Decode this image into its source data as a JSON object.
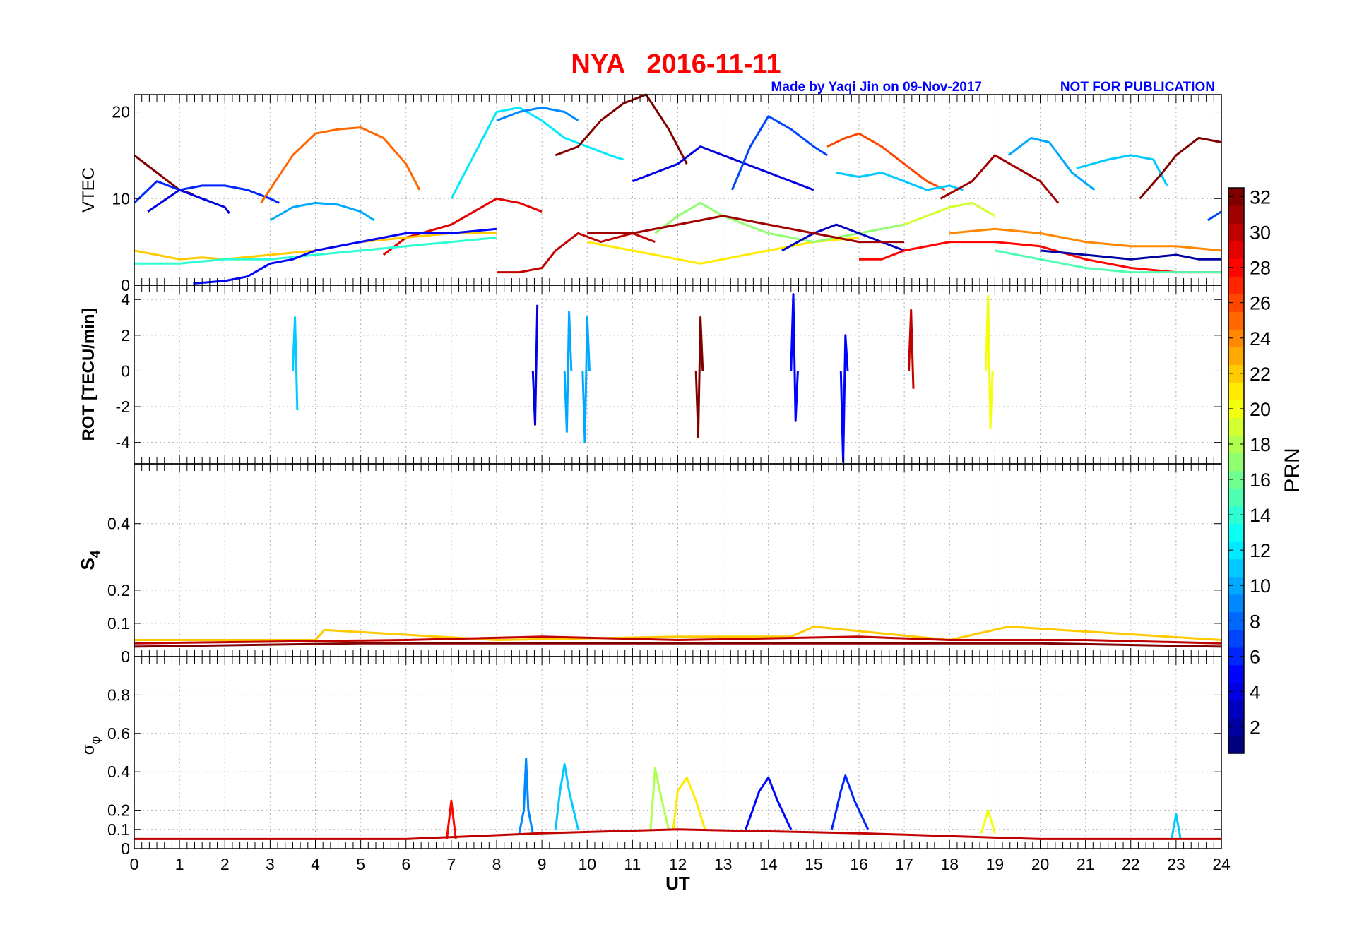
{
  "figure": {
    "title": "NYA   2016-11-11",
    "credit": "Made by Yaqi Jin on 09-Nov-2017",
    "notice": "NOT FOR PUBLICATION",
    "title_color": "#ff0000",
    "credit_color": "#0000ff"
  },
  "colorbar": {
    "label": "PRN",
    "ticks": [
      "2",
      "4",
      "6",
      "8",
      "10",
      "12",
      "14",
      "16",
      "18",
      "20",
      "22",
      "24",
      "26",
      "28",
      "30",
      "32"
    ],
    "range": [
      1,
      32
    ],
    "colormap": "jet"
  },
  "chart_data": [
    {
      "type": "line",
      "panel": "vtec",
      "ylabel": "VTEC",
      "xlim": [
        0,
        24
      ],
      "ylim": [
        0,
        22
      ],
      "yticks": [
        "0",
        "10",
        "20"
      ],
      "grid": true,
      "series": [
        {
          "prn": 32,
          "x": [
            0,
            0.5,
            1,
            1.3
          ],
          "y": [
            15,
            13,
            11,
            10.5
          ]
        },
        {
          "prn": 6,
          "x": [
            0,
            0.5,
            1,
            1.5,
            2,
            2.5,
            3,
            3.2
          ],
          "y": [
            9.5,
            12,
            11,
            11.5,
            11.5,
            11,
            10,
            9.5
          ]
        },
        {
          "prn": 4,
          "x": [
            0.3,
            1,
            1.5,
            2,
            2.1
          ],
          "y": [
            8.5,
            11,
            10,
            9,
            8.3
          ]
        },
        {
          "prn": 25,
          "x": [
            2.8,
            3.5,
            4,
            4.5,
            5,
            5.5,
            6,
            6.3
          ],
          "y": [
            9.5,
            15,
            17.5,
            18,
            18.2,
            17,
            14,
            11
          ]
        },
        {
          "prn": 10,
          "x": [
            3,
            3.5,
            4,
            4.5,
            5,
            5.3
          ],
          "y": [
            7.5,
            9,
            9.5,
            9.3,
            8.5,
            7.5
          ]
        },
        {
          "prn": 12,
          "x": [
            7,
            7.5,
            8,
            8.5,
            9,
            9.5,
            10,
            10.5,
            10.8
          ],
          "y": [
            10,
            15,
            20,
            20.5,
            19,
            17,
            16,
            15,
            14.5
          ]
        },
        {
          "prn": 9,
          "x": [
            8,
            8.5,
            9,
            9.5,
            9.8
          ],
          "y": [
            19,
            20,
            20.5,
            20,
            19
          ]
        },
        {
          "prn": 32,
          "x": [
            9.3,
            9.8,
            10.3,
            10.8,
            11.3,
            11.8,
            12.2
          ],
          "y": [
            15,
            16,
            19,
            21,
            22,
            18,
            14
          ]
        },
        {
          "prn": 4,
          "x": [
            11,
            11.5,
            12,
            12.5,
            13,
            13.5,
            14,
            14.5,
            15
          ],
          "y": [
            12,
            13,
            14,
            16,
            15,
            14,
            13,
            12,
            11
          ]
        },
        {
          "prn": 7,
          "x": [
            13.2,
            13.6,
            14,
            14.5,
            15,
            15.3
          ],
          "y": [
            11,
            16,
            19.5,
            18,
            16,
            15
          ]
        },
        {
          "prn": 26,
          "x": [
            15.3,
            15.7,
            16,
            16.5,
            17,
            17.5,
            17.9
          ],
          "y": [
            16,
            17,
            17.5,
            16,
            14,
            12,
            11
          ]
        },
        {
          "prn": 11,
          "x": [
            15.5,
            16,
            16.5,
            17,
            17.5,
            18,
            18.3
          ],
          "y": [
            13,
            12.5,
            13,
            12,
            11,
            11.5,
            11
          ]
        },
        {
          "prn": 10,
          "x": [
            19.3,
            19.8,
            20.2,
            20.7,
            21.2
          ],
          "y": [
            15,
            17,
            16.5,
            13,
            11
          ]
        },
        {
          "prn": 11,
          "x": [
            20.8,
            21.5,
            22,
            22.5,
            22.8
          ],
          "y": [
            13.5,
            14.5,
            15,
            14.5,
            11.5
          ]
        },
        {
          "prn": 31,
          "x": [
            17.8,
            18.5,
            19,
            19.5,
            20,
            20.4
          ],
          "y": [
            10,
            12,
            15,
            13.5,
            12,
            9.5
          ]
        },
        {
          "prn": 32,
          "x": [
            22.2,
            22.7,
            23,
            23.5,
            24
          ],
          "y": [
            10,
            13,
            15,
            17,
            16.5
          ]
        },
        {
          "prn": 29,
          "x": [
            5.5,
            6,
            7,
            8,
            8.5,
            9
          ],
          "y": [
            3.5,
            5.5,
            7,
            10,
            9.5,
            8.5
          ]
        },
        {
          "prn": 22,
          "x": [
            0,
            0.5,
            1,
            1.5,
            2,
            3,
            4,
            5,
            6,
            7,
            8
          ],
          "y": [
            4,
            3.5,
            3,
            3.2,
            3,
            3.5,
            4,
            5,
            5.5,
            6,
            6
          ]
        },
        {
          "prn": 14,
          "x": [
            0,
            1,
            2,
            3,
            4,
            5,
            6,
            7,
            8
          ],
          "y": [
            2.5,
            2.5,
            3,
            3,
            3.5,
            4,
            4.5,
            5,
            5.5
          ]
        },
        {
          "prn": 5,
          "x": [
            1.3,
            2,
            2.5,
            3,
            3.5,
            4,
            5,
            6,
            7,
            8
          ],
          "y": [
            0.2,
            0.5,
            1,
            2.5,
            3,
            4,
            5,
            6,
            6,
            6.5
          ]
        },
        {
          "prn": 30,
          "x": [
            8,
            8.5,
            9,
            9.3,
            9.8,
            10.3,
            11,
            11.5
          ],
          "y": [
            1.5,
            1.5,
            2,
            4,
            6,
            5,
            6,
            5
          ]
        },
        {
          "prn": 21,
          "x": [
            10,
            11,
            12,
            12.5,
            13,
            14,
            15,
            16
          ],
          "y": [
            5,
            4,
            3,
            2.5,
            3,
            4,
            5,
            5.5
          ]
        },
        {
          "prn": 17,
          "x": [
            11.5,
            12,
            12.5,
            13,
            14,
            15,
            16,
            17
          ],
          "y": [
            6,
            8,
            9.5,
            8,
            6,
            5,
            6,
            7
          ]
        },
        {
          "prn": 3,
          "x": [
            14.3,
            15,
            15.5,
            16,
            16.5,
            17
          ],
          "y": [
            4,
            6,
            7,
            6,
            5,
            4
          ]
        },
        {
          "prn": 28,
          "x": [
            16,
            16.5,
            17,
            18,
            19,
            20,
            21,
            22,
            23,
            24
          ],
          "y": [
            3,
            3,
            4,
            5,
            5,
            4.5,
            3,
            2,
            1.5,
            1.5
          ]
        },
        {
          "prn": 24,
          "x": [
            18,
            19,
            20,
            21,
            22,
            23,
            24
          ],
          "y": [
            6,
            6.5,
            6,
            5,
            4.5,
            4.5,
            4
          ]
        },
        {
          "prn": 15,
          "x": [
            19,
            20,
            21,
            22,
            23,
            24
          ],
          "y": [
            4,
            3,
            2,
            1.5,
            1.5,
            1.5
          ]
        },
        {
          "prn": 2,
          "x": [
            20,
            21,
            22,
            23,
            23.5,
            24
          ],
          "y": [
            4,
            3.5,
            3,
            3.5,
            3,
            3
          ]
        },
        {
          "prn": 19,
          "x": [
            17,
            17.5,
            18,
            18.5,
            19
          ],
          "y": [
            7,
            8,
            9,
            9.5,
            8
          ]
        },
        {
          "prn": 31,
          "x": [
            10,
            11,
            12,
            13,
            14,
            15,
            16,
            17
          ],
          "y": [
            6,
            6,
            7,
            8,
            7,
            6,
            5,
            5
          ]
        },
        {
          "prn": 7,
          "x": [
            23.7,
            24
          ],
          "y": [
            7.5,
            8.5
          ]
        }
      ]
    },
    {
      "type": "line",
      "panel": "rot",
      "ylabel": "ROT [TECU/min]",
      "xlim": [
        0,
        24
      ],
      "ylim": [
        -5.2,
        4.8
      ],
      "yticks": [
        "-4",
        "-2",
        "0",
        "2",
        "4"
      ],
      "grid": true,
      "series": [
        {
          "prn": 5,
          "x": [
            14.5,
            14.55,
            14.6,
            14.65
          ],
          "y": [
            0,
            4.3,
            -2.8,
            0
          ]
        },
        {
          "prn": 5,
          "x": [
            15.6,
            15.65,
            15.7,
            15.75
          ],
          "y": [
            0,
            -5.1,
            2,
            0
          ]
        },
        {
          "prn": 20,
          "x": [
            18.8,
            18.85,
            18.9,
            18.95
          ],
          "y": [
            0,
            4.2,
            -3.2,
            0
          ]
        },
        {
          "prn": 10,
          "x": [
            9.5,
            9.55,
            9.6,
            9.65
          ],
          "y": [
            0,
            -3.4,
            3.3,
            0
          ]
        },
        {
          "prn": 10,
          "x": [
            9.9,
            9.95,
            10,
            10.05
          ],
          "y": [
            0,
            -4,
            3,
            0
          ]
        },
        {
          "prn": 11,
          "x": [
            3.5,
            3.55,
            3.6
          ],
          "y": [
            0,
            3,
            -2.2
          ]
        },
        {
          "prn": 32,
          "x": [
            12.4,
            12.45,
            12.5,
            12.55
          ],
          "y": [
            0,
            -3.7,
            3,
            0
          ]
        },
        {
          "prn": 4,
          "x": [
            8.8,
            8.85,
            8.9
          ],
          "y": [
            0,
            -3,
            3.7
          ]
        },
        {
          "prn": 30,
          "x": [
            17.1,
            17.15,
            17.2
          ],
          "y": [
            0,
            3.4,
            -1
          ]
        }
      ]
    },
    {
      "type": "line",
      "panel": "s4",
      "ylabel": "S4",
      "xlim": [
        0,
        24
      ],
      "ylim": [
        0,
        0.58
      ],
      "yticks": [
        "0",
        "0.1",
        "0.2",
        "0.4"
      ],
      "grid": true,
      "series": [
        {
          "prn": 22,
          "x": [
            0,
            4,
            4.2,
            8,
            12,
            14.5,
            15,
            18,
            19.3,
            24
          ],
          "y": [
            0.05,
            0.05,
            0.08,
            0.05,
            0.06,
            0.06,
            0.09,
            0.05,
            0.09,
            0.05
          ]
        },
        {
          "prn": 30,
          "x": [
            0,
            6,
            9,
            12,
            16,
            18,
            21,
            24
          ],
          "y": [
            0.04,
            0.05,
            0.06,
            0.05,
            0.06,
            0.05,
            0.05,
            0.04
          ]
        },
        {
          "prn": 32,
          "x": [
            0,
            5,
            10,
            15,
            20,
            24
          ],
          "y": [
            0.03,
            0.04,
            0.04,
            0.04,
            0.04,
            0.03
          ]
        }
      ]
    },
    {
      "type": "line",
      "panel": "sigma_phi",
      "ylabel": "σφ",
      "xlabel": "UT",
      "xlim": [
        0,
        24
      ],
      "ylim": [
        0,
        1
      ],
      "yticks": [
        "0",
        "0.1",
        "0.2",
        "0.4",
        "0.6",
        "0.8"
      ],
      "xticks": [
        "0",
        "1",
        "2",
        "3",
        "4",
        "5",
        "6",
        "7",
        "8",
        "9",
        "10",
        "11",
        "12",
        "13",
        "14",
        "15",
        "16",
        "17",
        "18",
        "19",
        "20",
        "21",
        "22",
        "23",
        "24"
      ],
      "grid": true,
      "series": [
        {
          "prn": 9,
          "x": [
            8.5,
            8.6,
            8.65,
            8.7,
            8.8
          ],
          "y": [
            0.08,
            0.2,
            0.47,
            0.2,
            0.08
          ]
        },
        {
          "prn": 11,
          "x": [
            9.3,
            9.4,
            9.5,
            9.6,
            9.8
          ],
          "y": [
            0.1,
            0.3,
            0.44,
            0.3,
            0.1
          ]
        },
        {
          "prn": 18,
          "x": [
            11.4,
            11.5,
            11.6,
            11.8
          ],
          "y": [
            0.1,
            0.42,
            0.3,
            0.1
          ]
        },
        {
          "prn": 21,
          "x": [
            11.9,
            12,
            12.2,
            12.4,
            12.6
          ],
          "y": [
            0.1,
            0.3,
            0.37,
            0.25,
            0.1
          ]
        },
        {
          "prn": 5,
          "x": [
            13.5,
            13.8,
            14,
            14.2,
            14.5
          ],
          "y": [
            0.1,
            0.3,
            0.37,
            0.25,
            0.1
          ]
        },
        {
          "prn": 6,
          "x": [
            15.4,
            15.6,
            15.7,
            15.9,
            16.2
          ],
          "y": [
            0.1,
            0.3,
            0.38,
            0.25,
            0.1
          ]
        },
        {
          "prn": 28,
          "x": [
            6.9,
            7,
            7.1
          ],
          "y": [
            0.05,
            0.25,
            0.05
          ]
        },
        {
          "prn": 20,
          "x": [
            18.7,
            18.85,
            19
          ],
          "y": [
            0.08,
            0.2,
            0.08
          ]
        },
        {
          "prn": 11,
          "x": [
            22.9,
            23,
            23.1
          ],
          "y": [
            0.05,
            0.18,
            0.05
          ]
        },
        {
          "prn": 30,
          "x": [
            0,
            6,
            9,
            12,
            16,
            20,
            24
          ],
          "y": [
            0.05,
            0.05,
            0.08,
            0.1,
            0.08,
            0.05,
            0.05
          ]
        }
      ]
    }
  ]
}
